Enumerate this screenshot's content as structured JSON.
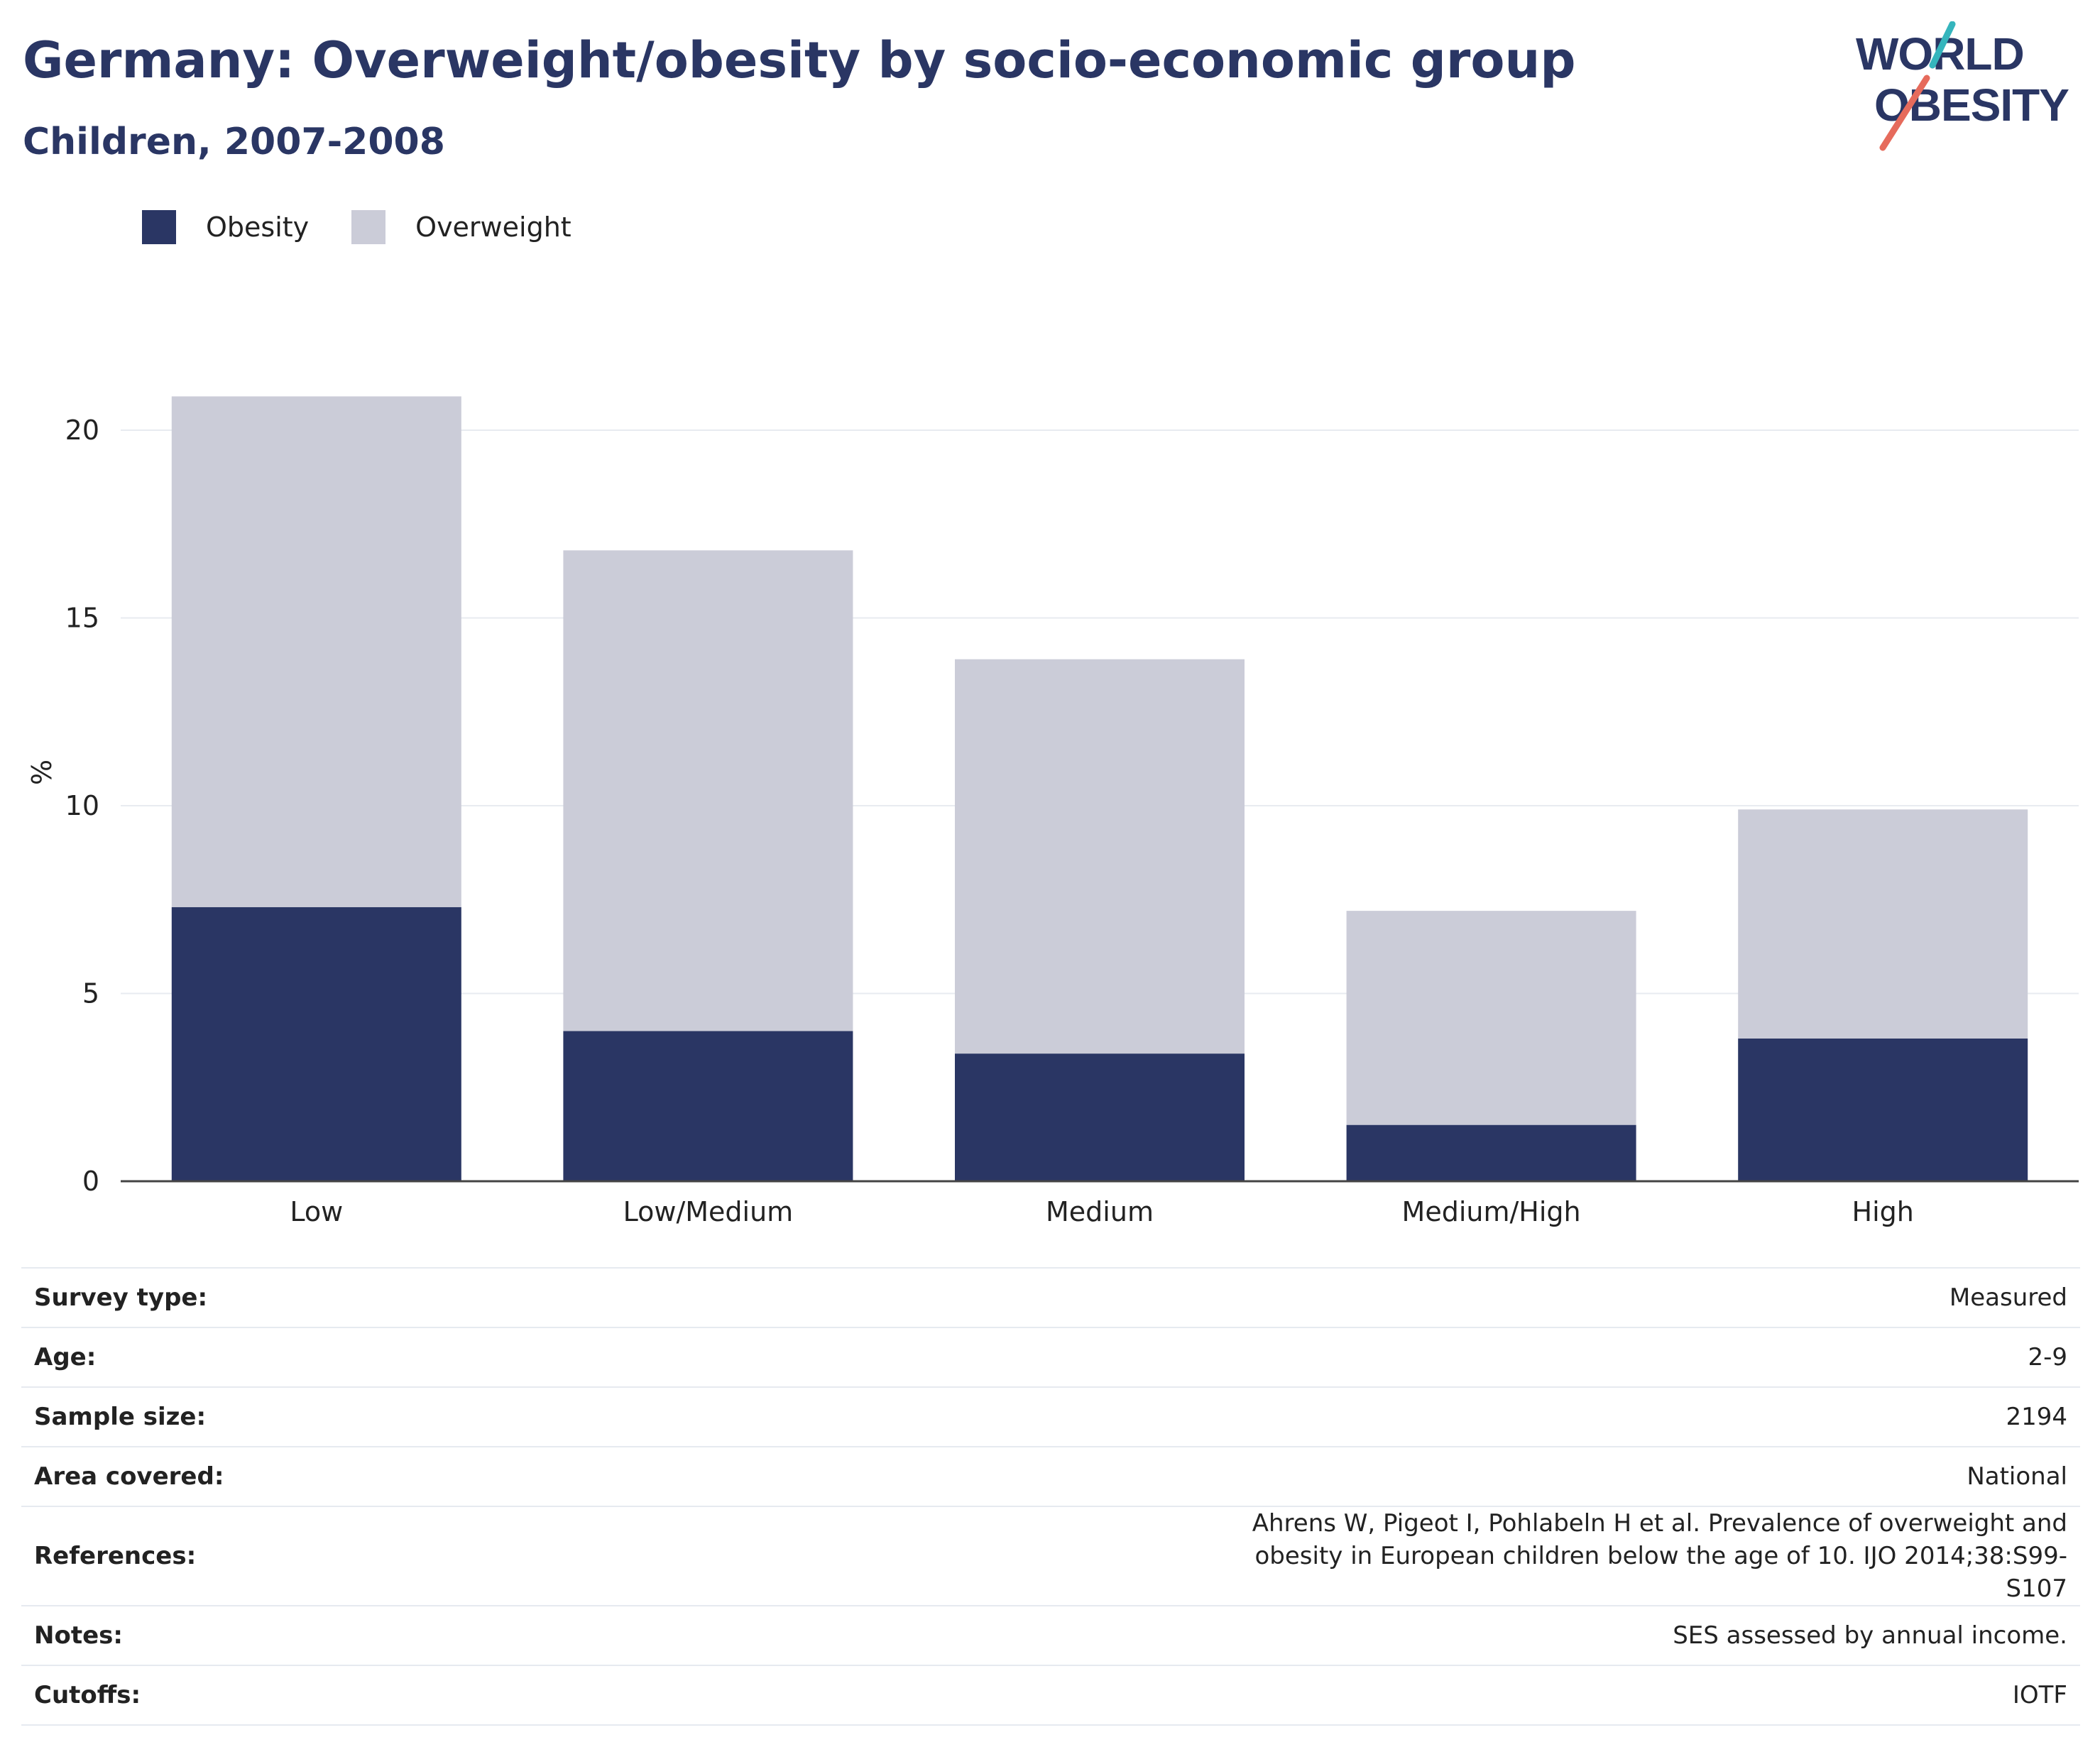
{
  "header": {
    "title": "Germany: Overweight/obesity by socio-economic group",
    "subtitle": "Children, 2007-2008",
    "logo_line1": "WORLD",
    "logo_line2": "OBESITY"
  },
  "colors": {
    "obesity": "#2a3664",
    "overweight": "#cbccd8",
    "accent_teal": "#35b5bd",
    "accent_coral": "#e66b5c"
  },
  "legend": [
    {
      "label": "Obesity",
      "color": "#2a3664"
    },
    {
      "label": "Overweight",
      "color": "#cbccd8"
    }
  ],
  "chart_data": {
    "type": "bar",
    "stacked": true,
    "categories": [
      "Low",
      "Low/Medium",
      "Medium",
      "Medium/High",
      "High"
    ],
    "series": [
      {
        "name": "Obesity",
        "values": [
          7.3,
          4.0,
          3.4,
          1.5,
          3.8
        ]
      },
      {
        "name": "Overweight",
        "values": [
          13.6,
          12.8,
          10.5,
          5.7,
          6.1
        ]
      }
    ],
    "totals": [
      20.9,
      16.8,
      13.9,
      7.2,
      9.9
    ],
    "ylabel": "%",
    "yticks": [
      0,
      5,
      10,
      15,
      20
    ],
    "ylim": [
      0,
      21
    ],
    "grid": true,
    "legend_position": "top-left"
  },
  "info": [
    {
      "label": "Survey type:",
      "value": "Measured"
    },
    {
      "label": "Age:",
      "value": "2-9"
    },
    {
      "label": "Sample size:",
      "value": "2194"
    },
    {
      "label": "Area covered:",
      "value": "National"
    },
    {
      "label": "References:",
      "value": "Ahrens W, Pigeot I, Pohlabeln H et al. Prevalence of overweight and obesity in European children below the age of 10. IJO 2014;38:S99-S107"
    },
    {
      "label": "Notes:",
      "value": "SES assessed by annual income."
    },
    {
      "label": "Cutoffs:",
      "value": "IOTF"
    }
  ]
}
